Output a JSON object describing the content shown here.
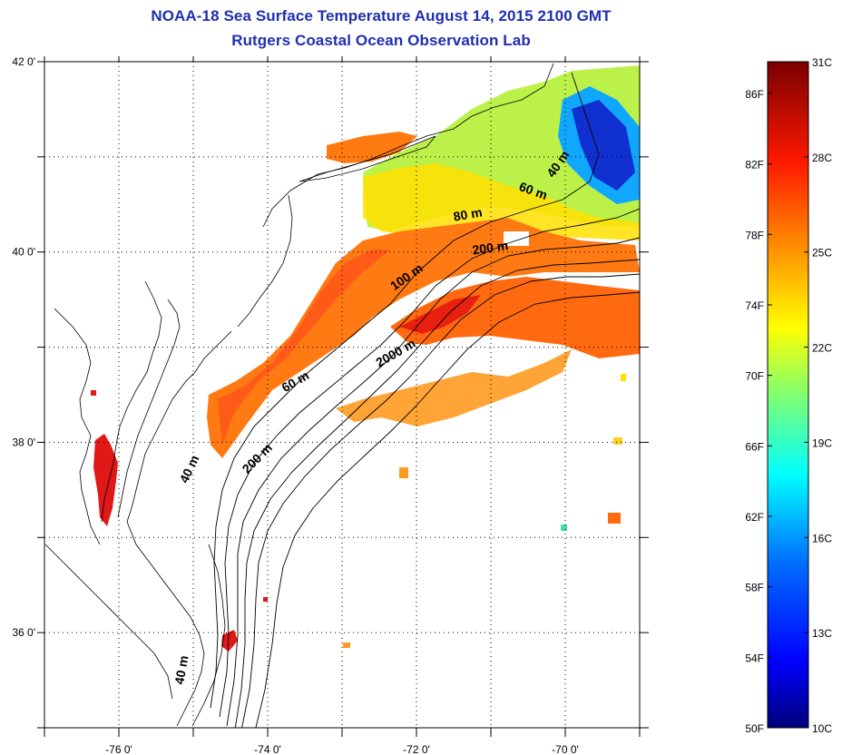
{
  "title": "NOAA-18 Sea Surface Temperature August 14, 2015 2100 GMT",
  "subtitle": "Rutgers Coastal Ocean Observation Lab",
  "map": {
    "lon_range": [
      -77,
      -69
    ],
    "lat_range": [
      35,
      42
    ],
    "x_ticks": [
      {
        "value": -76,
        "label": "-76 0'"
      },
      {
        "value": -74,
        "label": "-74 0'"
      },
      {
        "value": -72,
        "label": "-72 0'"
      },
      {
        "value": -70,
        "label": "-70 0'"
      }
    ],
    "y_ticks": [
      {
        "value": 42,
        "label": "42 0'"
      },
      {
        "value": 40,
        "label": "40 0'"
      },
      {
        "value": 38,
        "label": "38 0'"
      },
      {
        "value": 36,
        "label": "36 0'"
      }
    ],
    "gridlines": "dotted"
  },
  "contour_labels": [
    {
      "text": "40 m",
      "lon": -70.05,
      "lat": 40.9,
      "angle": -55
    },
    {
      "text": "60 m",
      "lon": -70.45,
      "lat": 40.6,
      "angle": 20
    },
    {
      "text": "80 m",
      "lon": -71.3,
      "lat": 40.35,
      "angle": -10
    },
    {
      "text": "200 m",
      "lon": -71.0,
      "lat": 40.0,
      "angle": -8
    },
    {
      "text": "100 m",
      "lon": -72.1,
      "lat": 39.7,
      "angle": -35
    },
    {
      "text": "2000 m",
      "lon": -72.25,
      "lat": 38.9,
      "angle": -30
    },
    {
      "text": "60 m",
      "lon": -73.6,
      "lat": 38.6,
      "angle": -30
    },
    {
      "text": "200 m",
      "lon": -74.1,
      "lat": 37.8,
      "angle": -45
    },
    {
      "text": "40 m",
      "lon": -75.0,
      "lat": 37.7,
      "angle": -65
    },
    {
      "text": "40 m",
      "lon": -75.1,
      "lat": 35.6,
      "angle": -80
    }
  ],
  "colorbar": {
    "min_c": 10,
    "max_c": 31,
    "left_labels": [
      "86F",
      "82F",
      "78F",
      "74F",
      "70F",
      "66F",
      "62F",
      "58F",
      "54F",
      "50F"
    ],
    "right_labels": [
      "31C",
      "28C",
      "25C",
      "22C",
      "19C",
      "16C",
      "13C",
      "10C"
    ],
    "colors": [
      "#000080",
      "#0000ff",
      "#0080ff",
      "#00ffff",
      "#80ff80",
      "#ffff00",
      "#ff8000",
      "#ff0000",
      "#800000"
    ]
  }
}
